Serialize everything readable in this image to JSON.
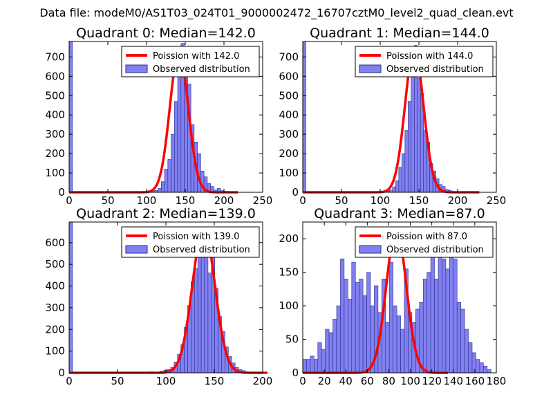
{
  "figure_title": "Data file: modeM0/AS1T03_024T01_9000002472_16707cztM0_level2_quad_clean.evt",
  "colors": {
    "bar_fill": "#8080f0",
    "bar_edge": "#2a2a8a",
    "fit_line": "#ff0000",
    "legend_edge": "#000000"
  },
  "chart_data": [
    {
      "type": "bar",
      "title": "Quadrant 0: Median=142.0",
      "median": 142.0,
      "xlim": [
        0,
        250
      ],
      "ylim": [
        0,
        780
      ],
      "xticks": [
        0,
        50,
        100,
        150,
        200,
        250
      ],
      "yticks": [
        0,
        100,
        200,
        300,
        400,
        500,
        600,
        700
      ],
      "tick_labels_x": [
        "0",
        "50",
        "100",
        "150",
        "200",
        "250"
      ],
      "tick_labels_y": [
        "0",
        "100",
        "200",
        "300",
        "400",
        "500",
        "600",
        "700"
      ],
      "legend": {
        "placement": "top-right",
        "line_label": "Poission with 142.0",
        "bar_label": "Observed distribution"
      },
      "bin_width": 4.25,
      "bins": [
        [
          0,
          780
        ],
        [
          85,
          5
        ],
        [
          89.25,
          0
        ],
        [
          93.5,
          0
        ],
        [
          97.75,
          3
        ],
        [
          102,
          3
        ],
        [
          106.25,
          5
        ],
        [
          110.5,
          10
        ],
        [
          114.75,
          20
        ],
        [
          119,
          55
        ],
        [
          123.25,
          120
        ],
        [
          127.5,
          170
        ],
        [
          131.75,
          300
        ],
        [
          136,
          470
        ],
        [
          140.25,
          610
        ],
        [
          144.5,
          770
        ],
        [
          148.75,
          680
        ],
        [
          153,
          560
        ],
        [
          157.25,
          350
        ],
        [
          161.5,
          260
        ],
        [
          165.75,
          200
        ],
        [
          170,
          110
        ],
        [
          174.25,
          80
        ],
        [
          178.5,
          45
        ],
        [
          182.75,
          30
        ],
        [
          187,
          12
        ],
        [
          191.25,
          20
        ],
        [
          195.5,
          8
        ],
        [
          199.75,
          5
        ]
      ],
      "curve": {
        "mu": 142.0,
        "sigma": 11.9,
        "peak": 728,
        "x_range": [
          0,
          218
        ]
      }
    },
    {
      "type": "bar",
      "title": "Quadrant 1: Median=144.0",
      "median": 144.0,
      "xlim": [
        0,
        250
      ],
      "ylim": [
        0,
        780
      ],
      "xticks": [
        0,
        50,
        100,
        150,
        200,
        250
      ],
      "yticks": [
        0,
        100,
        200,
        300,
        400,
        500,
        600,
        700
      ],
      "tick_labels_x": [
        "0",
        "50",
        "100",
        "150",
        "200",
        "250"
      ],
      "tick_labels_y": [
        "0",
        "100",
        "200",
        "300",
        "400",
        "500",
        "600",
        "700"
      ],
      "legend": {
        "placement": "top-right",
        "line_label": "Poission with 144.0",
        "bar_label": "Observed distribution"
      },
      "bin_width": 4.0,
      "bins": [
        [
          0,
          780
        ],
        [
          88,
          3
        ],
        [
          92,
          0
        ],
        [
          96,
          2
        ],
        [
          100,
          5
        ],
        [
          104,
          3
        ],
        [
          108,
          6
        ],
        [
          112,
          12
        ],
        [
          116,
          28
        ],
        [
          120,
          60
        ],
        [
          124,
          130
        ],
        [
          128,
          200
        ],
        [
          132,
          320
        ],
        [
          136,
          470
        ],
        [
          140,
          640
        ],
        [
          144,
          760
        ],
        [
          148,
          590
        ],
        [
          152,
          510
        ],
        [
          156,
          320
        ],
        [
          160,
          260
        ],
        [
          164,
          150
        ],
        [
          168,
          110
        ],
        [
          172,
          70
        ],
        [
          176,
          40
        ],
        [
          180,
          30
        ],
        [
          184,
          15
        ],
        [
          188,
          10
        ],
        [
          192,
          5
        ]
      ],
      "curve": {
        "mu": 144.0,
        "sigma": 12.0,
        "peak": 740,
        "x_range": [
          0,
          228
        ]
      }
    },
    {
      "type": "bar",
      "title": "Quadrant 2: Median=139.0",
      "median": 139.0,
      "xlim": [
        0,
        200
      ],
      "ylim": [
        0,
        695
      ],
      "xticks": [
        0,
        50,
        100,
        150,
        200
      ],
      "yticks": [
        0,
        100,
        200,
        300,
        400,
        500,
        600
      ],
      "tick_labels_x": [
        "0",
        "50",
        "100",
        "150",
        "200"
      ],
      "tick_labels_y": [
        "0",
        "100",
        "200",
        "300",
        "400",
        "500",
        "600"
      ],
      "legend": {
        "placement": "top-right",
        "line_label": "Poission with 139.0",
        "bar_label": "Observed distribution"
      },
      "bin_width": 3.5,
      "bins": [
        [
          0,
          695
        ],
        [
          84,
          5
        ],
        [
          87.5,
          2
        ],
        [
          91,
          4
        ],
        [
          94.5,
          8
        ],
        [
          98,
          12
        ],
        [
          101.5,
          15
        ],
        [
          105,
          25
        ],
        [
          108.5,
          50
        ],
        [
          112,
          85
        ],
        [
          115.5,
          130
        ],
        [
          119,
          210
        ],
        [
          122.5,
          310
        ],
        [
          126,
          420
        ],
        [
          129.5,
          480
        ],
        [
          133,
          560
        ],
        [
          136.5,
          590
        ],
        [
          140,
          630
        ],
        [
          143.5,
          460
        ],
        [
          147,
          540
        ],
        [
          150.5,
          390
        ],
        [
          154,
          260
        ],
        [
          157.5,
          190
        ],
        [
          161,
          120
        ],
        [
          164.5,
          75
        ],
        [
          168,
          45
        ],
        [
          171.5,
          25
        ],
        [
          175,
          15
        ],
        [
          178.5,
          10
        ],
        [
          182,
          5
        ]
      ],
      "curve": {
        "mu": 139.0,
        "sigma": 11.7,
        "peak": 665,
        "x_range": [
          0,
          205
        ]
      }
    },
    {
      "type": "bar",
      "title": "Quadrant 3: Median=87.0",
      "median": 87.0,
      "xlim": [
        0,
        180
      ],
      "ylim": [
        0,
        225
      ],
      "xticks": [
        0,
        20,
        40,
        60,
        80,
        100,
        120,
        140,
        160,
        180
      ],
      "yticks": [
        0,
        50,
        100,
        150,
        200
      ],
      "tick_labels_x": [
        "0",
        "20",
        "40",
        "60",
        "80",
        "100",
        "120",
        "140",
        "160",
        "180"
      ],
      "tick_labels_y": [
        "0",
        "50",
        "100",
        "150",
        "200"
      ],
      "legend": {
        "placement": "top-right",
        "line_label": "Poission with 87.0",
        "bar_label": "Observed distribution"
      },
      "bin_width": 3.5,
      "bins": [
        [
          0,
          20
        ],
        [
          3.5,
          20
        ],
        [
          7,
          25
        ],
        [
          10.5,
          20
        ],
        [
          14,
          45
        ],
        [
          17.5,
          35
        ],
        [
          21,
          65
        ],
        [
          24.5,
          60
        ],
        [
          28,
          80
        ],
        [
          31.5,
          100
        ],
        [
          35,
          170
        ],
        [
          38.5,
          140
        ],
        [
          42,
          110
        ],
        [
          45.5,
          165
        ],
        [
          49,
          135
        ],
        [
          52.5,
          140
        ],
        [
          56,
          115
        ],
        [
          59.5,
          150
        ],
        [
          63,
          100
        ],
        [
          66.5,
          130
        ],
        [
          70,
          90
        ],
        [
          73.5,
          140
        ],
        [
          77,
          75
        ],
        [
          80.5,
          165
        ],
        [
          84,
          100
        ],
        [
          87.5,
          85
        ],
        [
          91,
          65
        ],
        [
          94.5,
          155
        ],
        [
          98,
          90
        ],
        [
          101.5,
          75
        ],
        [
          105,
          95
        ],
        [
          108.5,
          105
        ],
        [
          112,
          140
        ],
        [
          115.5,
          150
        ],
        [
          119,
          175
        ],
        [
          122.5,
          140
        ],
        [
          126,
          205
        ],
        [
          129.5,
          170
        ],
        [
          133,
          155
        ],
        [
          136.5,
          200
        ],
        [
          140,
          170
        ],
        [
          143.5,
          105
        ],
        [
          147,
          95
        ],
        [
          150.5,
          65
        ],
        [
          154,
          45
        ],
        [
          157.5,
          30
        ],
        [
          161,
          20
        ],
        [
          164.5,
          15
        ],
        [
          168,
          10
        ],
        [
          171.5,
          5
        ]
      ],
      "curve": {
        "mu": 87.0,
        "sigma": 9.3,
        "peak": 215,
        "x_range": [
          0,
          135
        ]
      }
    }
  ]
}
